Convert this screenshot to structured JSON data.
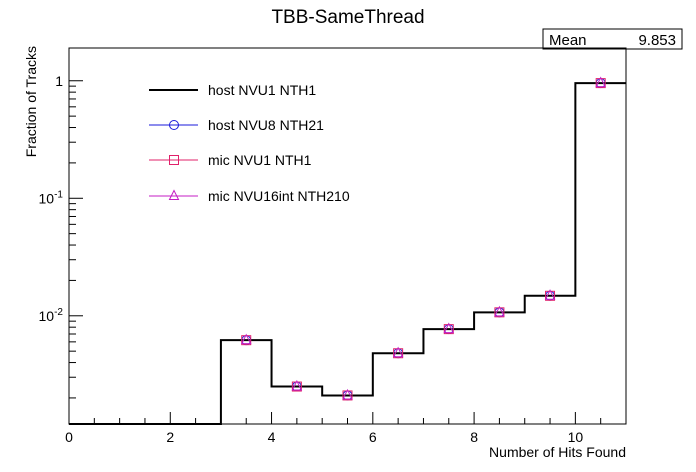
{
  "chart_data": {
    "type": "step",
    "title": "TBB-SameThread",
    "xlabel": "Number of Hits Found",
    "ylabel": "Fraction of Tracks",
    "xlim": [
      0,
      11
    ],
    "ylim": [
      0.0012,
      1.9
    ],
    "yscale": "log",
    "grid": false,
    "legend_position": "top-left",
    "x_ticks": [
      0,
      2,
      4,
      6,
      8,
      10
    ],
    "y_ticks": [
      {
        "value": 1,
        "base": "1",
        "exp": ""
      },
      {
        "value": 0.1,
        "base": "10",
        "exp": "-1"
      },
      {
        "value": 0.01,
        "base": "10",
        "exp": "-2"
      }
    ],
    "bin_edges": [
      0,
      1,
      2,
      3,
      4,
      5,
      6,
      7,
      8,
      9,
      10,
      11
    ],
    "bin_centers": [
      0.5,
      1.5,
      2.5,
      3.5,
      4.5,
      5.5,
      6.5,
      7.5,
      8.5,
      9.5,
      10.5
    ],
    "stats": {
      "label": "Mean",
      "value": "9.853"
    },
    "series": [
      {
        "name": "host NVU1 NTH1",
        "marker": "line",
        "color": "#000000",
        "values": [
          0,
          0,
          0,
          0.0062,
          0.0025,
          0.0021,
          0.0048,
          0.0077,
          0.0107,
          0.0148,
          0.955
        ]
      },
      {
        "name": "host NVU8 NTH21",
        "marker": "circle",
        "color": "#1a1adb",
        "values": [
          0,
          0,
          0,
          0.0062,
          0.0025,
          0.0021,
          0.0048,
          0.0077,
          0.0107,
          0.0148,
          0.955
        ]
      },
      {
        "name": "mic NVU1 NTH1",
        "marker": "square",
        "color": "#e0206a",
        "values": [
          0,
          0,
          0,
          0.0062,
          0.0025,
          0.0021,
          0.0048,
          0.0077,
          0.0107,
          0.0148,
          0.955
        ]
      },
      {
        "name": "mic NVU16int NTH210",
        "marker": "triangle",
        "color": "#c41ec4",
        "values": [
          0,
          0,
          0,
          0.0062,
          0.0025,
          0.0021,
          0.0048,
          0.0077,
          0.0107,
          0.0148,
          0.955
        ]
      }
    ]
  }
}
